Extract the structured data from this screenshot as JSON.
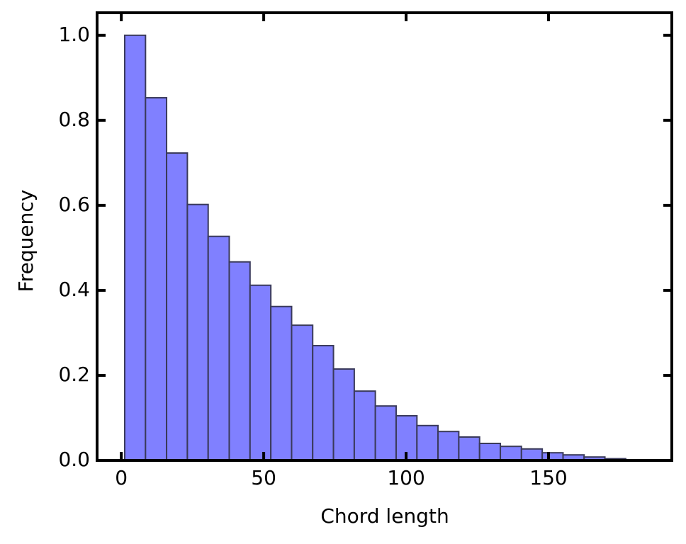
{
  "chart_data": {
    "type": "histogram",
    "xlabel": "Chord length",
    "ylabel": "Frequency",
    "bins": [
      1.2,
      8.5,
      15.9,
      23.2,
      30.5,
      37.9,
      45.2,
      52.5,
      59.8,
      67.2,
      74.5,
      81.8,
      89.2,
      96.5,
      103.8,
      111.2,
      118.5,
      125.8,
      133.1,
      140.5,
      147.8,
      155.1,
      162.5,
      169.8,
      177.1
    ],
    "values": [
      1.0,
      0.853,
      0.723,
      0.602,
      0.527,
      0.467,
      0.412,
      0.362,
      0.318,
      0.27,
      0.215,
      0.163,
      0.128,
      0.105,
      0.082,
      0.068,
      0.055,
      0.04,
      0.033,
      0.027,
      0.018,
      0.013,
      0.008,
      0.004
    ],
    "color": "#8080ff",
    "edgecolor": "#3a3a5a",
    "xlim": [
      -8.5,
      193.3
    ],
    "ylim": [
      0,
      1.053
    ],
    "xticks": [
      0,
      50,
      100,
      150
    ],
    "yticks": [
      {
        "value": 0,
        "label": "0.0"
      },
      {
        "value": 0.2,
        "label": "0.2"
      },
      {
        "value": 0.4,
        "label": "0.4"
      },
      {
        "value": 0.6,
        "label": "0.6"
      },
      {
        "value": 0.8,
        "label": "0.8"
      },
      {
        "value": 1.0,
        "label": "1.0"
      }
    ]
  }
}
